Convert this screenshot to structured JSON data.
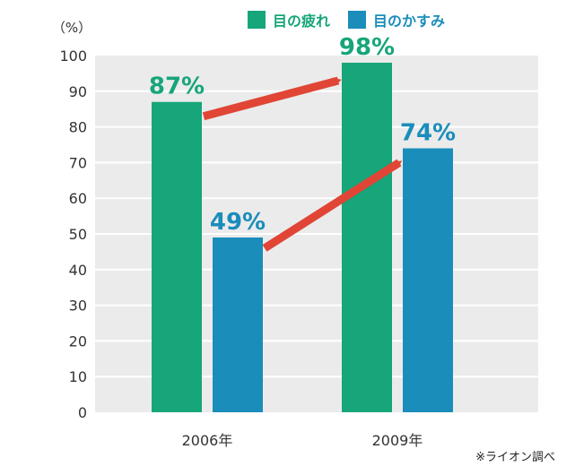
{
  "colors": {
    "fatigue": "#17a57a",
    "blur": "#1a8dbb",
    "arrow": "#e04535",
    "plot_bg": "#ebebeb",
    "grid": "#ffffff",
    "axis_text": "#333333"
  },
  "legend": [
    {
      "label": "目の疲れ",
      "color": "#17a57a"
    },
    {
      "label": "目のかすみ",
      "color": "#1a8dbb"
    }
  ],
  "note": "※ライオン調べ",
  "chart_data": {
    "type": "bar",
    "unit_label": "（%）",
    "categories": [
      "2006年",
      "2009年"
    ],
    "series": [
      {
        "name": "目の疲れ",
        "values": [
          87,
          98
        ],
        "labels": [
          "87%",
          "98%"
        ]
      },
      {
        "name": "目のかすみ",
        "values": [
          49,
          74
        ],
        "labels": [
          "49%",
          "74%"
        ]
      }
    ],
    "ylim": [
      0,
      100
    ],
    "yticks": [
      0,
      10,
      20,
      30,
      40,
      50,
      60,
      70,
      80,
      90,
      100
    ],
    "grid": true,
    "legend_position": "top-right",
    "annotations": [
      "arrow 87%→98%",
      "arrow 49%→74%"
    ]
  }
}
